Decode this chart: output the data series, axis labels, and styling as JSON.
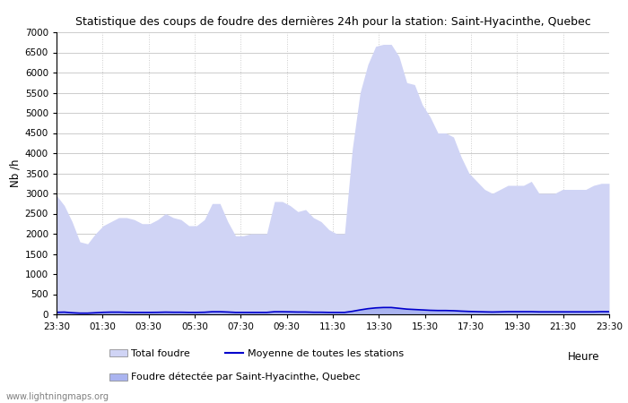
{
  "title": "Statistique des coups de foudre des dernières 24h pour la station: Saint-Hyacinthe, Quebec",
  "ylabel": "Nb /h",
  "xlabel_heure": "Heure",
  "ylim": [
    0,
    7000
  ],
  "yticks": [
    0,
    500,
    1000,
    1500,
    2000,
    2500,
    3000,
    3500,
    4000,
    4500,
    5000,
    5500,
    6000,
    6500,
    7000
  ],
  "xtick_labels": [
    "23:30",
    "01:30",
    "03:30",
    "05:30",
    "07:30",
    "09:30",
    "11:30",
    "13:30",
    "15:30",
    "17:30",
    "19:30",
    "21:30",
    "23:30"
  ],
  "bg_color": "#ffffff",
  "grid_color": "#cccccc",
  "total_foudre_color": "#d0d4f5",
  "local_foudre_color": "#aab4f0",
  "moyenne_color": "#0000cc",
  "watermark": "www.lightningmaps.org",
  "legend_total": "Total foudre",
  "legend_moyenne": "Moyenne de toutes les stations",
  "legend_local": "Foudre détectée par Saint-Hyacinthe, Quebec",
  "total_foudre": [
    2950,
    2700,
    2300,
    1800,
    1750,
    2000,
    2200,
    2300,
    2400,
    2400,
    2350,
    2250,
    2250,
    2350,
    2500,
    2400,
    2350,
    2200,
    2200,
    2350,
    2750,
    2750,
    2300,
    1950,
    1950,
    2000,
    2000,
    2000,
    2800,
    2800,
    2700,
    2550,
    2600,
    2400,
    2300,
    2100,
    2000,
    2000,
    4100,
    5500,
    6200,
    6650,
    6700,
    6700,
    6400,
    5750,
    5700,
    5200,
    4900,
    4500,
    4500,
    4400,
    3900,
    3500,
    3300,
    3100,
    3000,
    3100,
    3200,
    3200,
    3200,
    3300,
    3000,
    3000,
    3000,
    3100,
    3100,
    3100,
    3100,
    3200,
    3250,
    3250
  ],
  "local_foudre": [
    50,
    60,
    40,
    30,
    30,
    40,
    50,
    60,
    60,
    55,
    50,
    50,
    50,
    50,
    60,
    55,
    55,
    50,
    50,
    55,
    70,
    70,
    60,
    50,
    50,
    50,
    50,
    50,
    70,
    70,
    65,
    60,
    60,
    55,
    55,
    50,
    50,
    50,
    80,
    120,
    150,
    170,
    180,
    180,
    160,
    140,
    130,
    120,
    110,
    100,
    100,
    95,
    85,
    75,
    70,
    65,
    60,
    65,
    70,
    70,
    70,
    70,
    65,
    65,
    65,
    65,
    65,
    65,
    65,
    65,
    70,
    70
  ],
  "moyenne": [
    50,
    55,
    40,
    30,
    30,
    40,
    50,
    55,
    55,
    50,
    48,
    48,
    48,
    50,
    55,
    52,
    52,
    48,
    48,
    52,
    65,
    65,
    58,
    48,
    48,
    48,
    48,
    48,
    65,
    65,
    62,
    58,
    58,
    52,
    52,
    48,
    48,
    48,
    75,
    110,
    140,
    160,
    170,
    170,
    150,
    130,
    120,
    110,
    100,
    95,
    95,
    90,
    80,
    72,
    67,
    62,
    58,
    62,
    67,
    67,
    67,
    67,
    62,
    62,
    62,
    62,
    62,
    62,
    62,
    62,
    67,
    67
  ]
}
